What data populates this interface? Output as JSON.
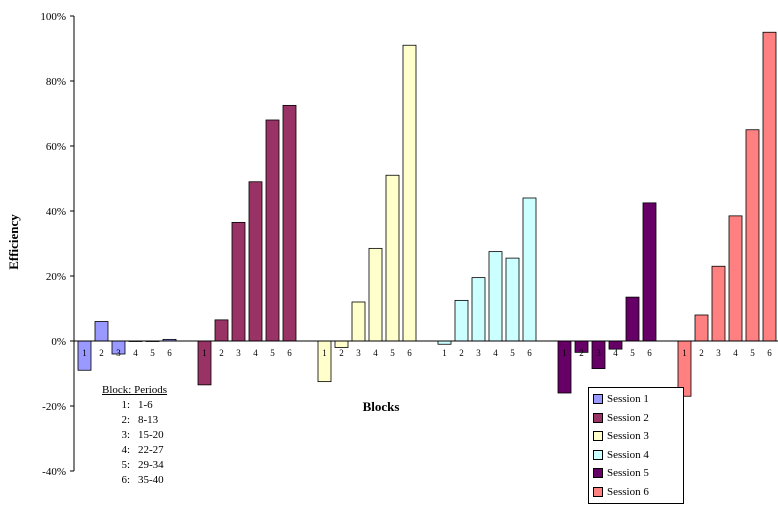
{
  "chart_data": {
    "type": "bar",
    "ylabel": "Efficiency",
    "xlabel": "Blocks",
    "ylim": [
      -40,
      100
    ],
    "y_ticks": [
      "100%",
      "80%",
      "60%",
      "40%",
      "20%",
      "0%",
      "-20%",
      "-40%"
    ],
    "y_tick_values": [
      100,
      80,
      60,
      40,
      20,
      0,
      -20,
      -40
    ],
    "categories": [
      "1",
      "2",
      "3",
      "4",
      "5",
      "6"
    ],
    "series": [
      {
        "name": "Session 1",
        "color": "#9999ff",
        "values": [
          -9,
          6,
          -4,
          0,
          0,
          0.5
        ]
      },
      {
        "name": "Session 2",
        "color": "#993366",
        "values": [
          -13.5,
          6.5,
          36.5,
          49,
          68,
          72.5
        ]
      },
      {
        "name": "Session 3",
        "color": "#ffffcc",
        "values": [
          -12.5,
          -2,
          12,
          28.5,
          51,
          91
        ]
      },
      {
        "name": "Session 4",
        "color": "#ccffff",
        "values": [
          -1,
          12.5,
          19.5,
          27.5,
          25.5,
          44
        ]
      },
      {
        "name": "Session 5",
        "color": "#660066",
        "values": [
          -16,
          -3.5,
          -8.5,
          -2.5,
          13.5,
          42.5
        ]
      },
      {
        "name": "Session 6",
        "color": "#ff8080",
        "values": [
          -17,
          8,
          23,
          38.5,
          65,
          95
        ]
      }
    ],
    "legend_position": "bottom-right",
    "grid": false
  },
  "block_table": {
    "title": "Block: Periods",
    "rows": [
      {
        "block": "1:",
        "periods": "1-6"
      },
      {
        "block": "2:",
        "periods": "8-13"
      },
      {
        "block": "3:",
        "periods": "15-20"
      },
      {
        "block": "4:",
        "periods": "22-27"
      },
      {
        "block": "5:",
        "periods": "29-34"
      },
      {
        "block": "6:",
        "periods": "35-40"
      }
    ]
  }
}
